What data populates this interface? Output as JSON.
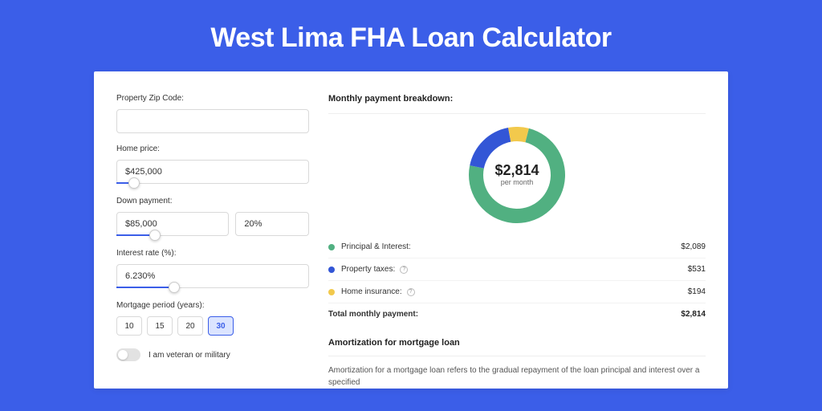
{
  "page": {
    "title": "West Lima FHA Loan Calculator",
    "background_color": "#3b5ee8",
    "card_background": "#ffffff"
  },
  "form": {
    "zip": {
      "label": "Property Zip Code:",
      "value": ""
    },
    "home_price": {
      "label": "Home price:",
      "value": "$425,000",
      "slider_pct": 9
    },
    "down_payment": {
      "label": "Down payment:",
      "amount": "$85,000",
      "percent": "20%",
      "slider_pct": 20
    },
    "interest_rate": {
      "label": "Interest rate (%):",
      "value": "6.230%",
      "slider_pct": 30
    },
    "mortgage_period": {
      "label": "Mortgage period (years):",
      "options": [
        "10",
        "15",
        "20",
        "30"
      ],
      "selected": "30"
    },
    "veteran": {
      "label": "I am veteran or military",
      "checked": false
    }
  },
  "breakdown": {
    "header": "Monthly payment breakdown:",
    "center_amount": "$2,814",
    "center_subtext": "per month",
    "rows": [
      {
        "key": "principal_interest",
        "label": "Principal & Interest:",
        "value": "$2,089",
        "color": "#51b081",
        "has_info": false
      },
      {
        "key": "property_taxes",
        "label": "Property taxes:",
        "value": "$531",
        "color": "#3356d6",
        "has_info": true
      },
      {
        "key": "home_insurance",
        "label": "Home insurance:",
        "value": "$194",
        "color": "#f2c94c",
        "has_info": true
      }
    ],
    "total": {
      "label": "Total monthly payment:",
      "value": "$2,814"
    },
    "donut": {
      "type": "donut",
      "diameter": 120,
      "thickness": 18,
      "background": "#ffffff",
      "slices": [
        {
          "color": "#51b081",
          "fraction": 0.742
        },
        {
          "color": "#3356d6",
          "fraction": 0.189
        },
        {
          "color": "#f2c94c",
          "fraction": 0.069
        }
      ]
    }
  },
  "amortization": {
    "header": "Amortization for mortgage loan",
    "text": "Amortization for a mortgage loan refers to the gradual repayment of the loan principal and interest over a specified"
  }
}
